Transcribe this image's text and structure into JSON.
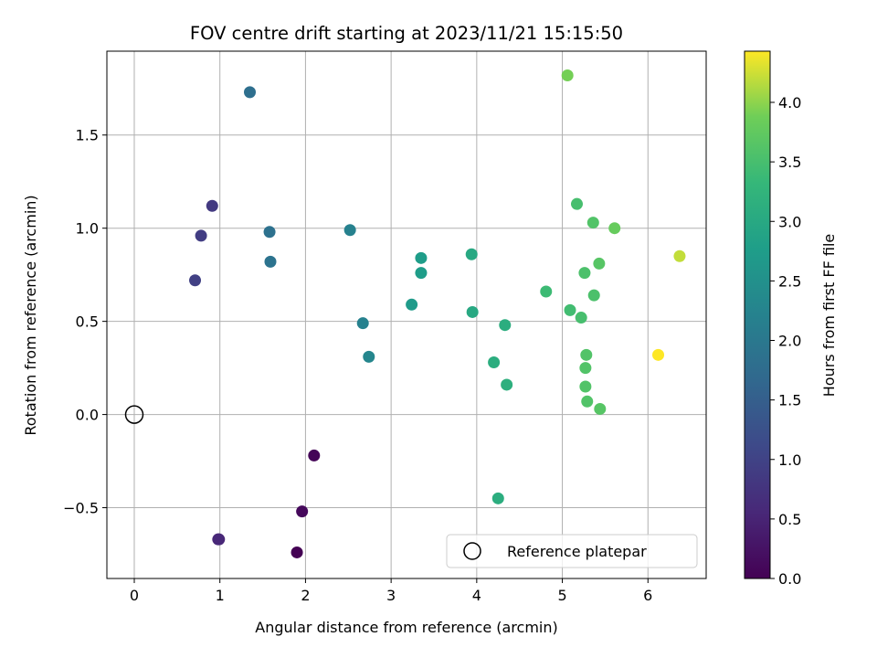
{
  "chart_data": {
    "type": "scatter",
    "title": "FOV centre drift starting at 2023/11/21 15:15:50",
    "xlabel": "Angular distance from reference (arcmin)",
    "ylabel": "Rotation from reference (arcmin)",
    "xlim": [
      -0.32,
      6.68
    ],
    "ylim": [
      -0.88,
      1.95
    ],
    "xticks": [
      0,
      1,
      2,
      3,
      4,
      5,
      6
    ],
    "xtick_labels": [
      "0",
      "1",
      "2",
      "3",
      "4",
      "5",
      "6"
    ],
    "yticks": [
      -0.5,
      0.0,
      0.5,
      1.0,
      1.5
    ],
    "ytick_labels": [
      "−0.5",
      "0.0",
      "0.5",
      "1.0",
      "1.5"
    ],
    "grid": true,
    "legend": {
      "placement": "lower-right",
      "entries": [
        "Reference platepar"
      ]
    },
    "reference_point": {
      "name": "Reference platepar",
      "x": 0.0,
      "y": 0.0
    },
    "colorbar": {
      "label": "Hours from first FF file",
      "colormap": "viridis",
      "range": [
        0.0,
        4.43
      ],
      "ticks": [
        0.0,
        0.5,
        1.0,
        1.5,
        2.0,
        2.5,
        3.0,
        3.5,
        4.0
      ],
      "tick_labels": [
        "0.0",
        "0.5",
        "1.0",
        "1.5",
        "2.0",
        "2.5",
        "3.0",
        "3.5",
        "4.0"
      ]
    },
    "points": [
      {
        "x": 1.9,
        "y": -0.74,
        "hours": 0.0
      },
      {
        "x": 1.96,
        "y": -0.52,
        "hours": 0.1
      },
      {
        "x": 2.1,
        "y": -0.22,
        "hours": 0.05
      },
      {
        "x": 0.99,
        "y": -0.67,
        "hours": 0.5
      },
      {
        "x": 0.98,
        "y": -0.67,
        "hours": 0.55
      },
      {
        "x": 0.71,
        "y": 0.72,
        "hours": 0.95
      },
      {
        "x": 0.78,
        "y": 0.96,
        "hours": 0.9
      },
      {
        "x": 0.91,
        "y": 1.12,
        "hours": 0.85
      },
      {
        "x": 1.35,
        "y": 1.73,
        "hours": 1.8
      },
      {
        "x": 1.58,
        "y": 0.98,
        "hours": 1.85
      },
      {
        "x": 1.59,
        "y": 0.82,
        "hours": 1.9
      },
      {
        "x": 2.52,
        "y": 0.99,
        "hours": 2.2
      },
      {
        "x": 2.67,
        "y": 0.49,
        "hours": 2.2
      },
      {
        "x": 2.74,
        "y": 0.31,
        "hours": 2.3
      },
      {
        "x": 3.24,
        "y": 0.59,
        "hours": 2.7
      },
      {
        "x": 3.35,
        "y": 0.76,
        "hours": 2.75
      },
      {
        "x": 3.35,
        "y": 0.84,
        "hours": 2.75
      },
      {
        "x": 3.94,
        "y": 0.86,
        "hours": 3.0
      },
      {
        "x": 3.95,
        "y": 0.55,
        "hours": 3.0
      },
      {
        "x": 4.2,
        "y": 0.28,
        "hours": 3.1
      },
      {
        "x": 4.33,
        "y": 0.48,
        "hours": 3.1
      },
      {
        "x": 4.35,
        "y": 0.16,
        "hours": 3.15
      },
      {
        "x": 4.25,
        "y": -0.45,
        "hours": 3.1
      },
      {
        "x": 4.81,
        "y": 0.66,
        "hours": 3.4
      },
      {
        "x": 5.09,
        "y": 0.56,
        "hours": 3.45
      },
      {
        "x": 5.17,
        "y": 1.13,
        "hours": 3.5
      },
      {
        "x": 5.22,
        "y": 0.52,
        "hours": 3.5
      },
      {
        "x": 5.26,
        "y": 0.76,
        "hours": 3.55
      },
      {
        "x": 5.36,
        "y": 1.03,
        "hours": 3.6
      },
      {
        "x": 5.37,
        "y": 0.64,
        "hours": 3.55
      },
      {
        "x": 5.43,
        "y": 0.81,
        "hours": 3.65
      },
      {
        "x": 5.28,
        "y": 0.32,
        "hours": 3.6
      },
      {
        "x": 5.27,
        "y": 0.25,
        "hours": 3.6
      },
      {
        "x": 5.27,
        "y": 0.15,
        "hours": 3.6
      },
      {
        "x": 5.29,
        "y": 0.07,
        "hours": 3.6
      },
      {
        "x": 5.44,
        "y": 0.03,
        "hours": 3.65
      },
      {
        "x": 5.61,
        "y": 1.0,
        "hours": 3.8
      },
      {
        "x": 5.06,
        "y": 1.82,
        "hours": 3.9
      },
      {
        "x": 6.37,
        "y": 0.85,
        "hours": 4.2
      },
      {
        "x": 6.12,
        "y": 0.32,
        "hours": 4.43
      }
    ]
  }
}
